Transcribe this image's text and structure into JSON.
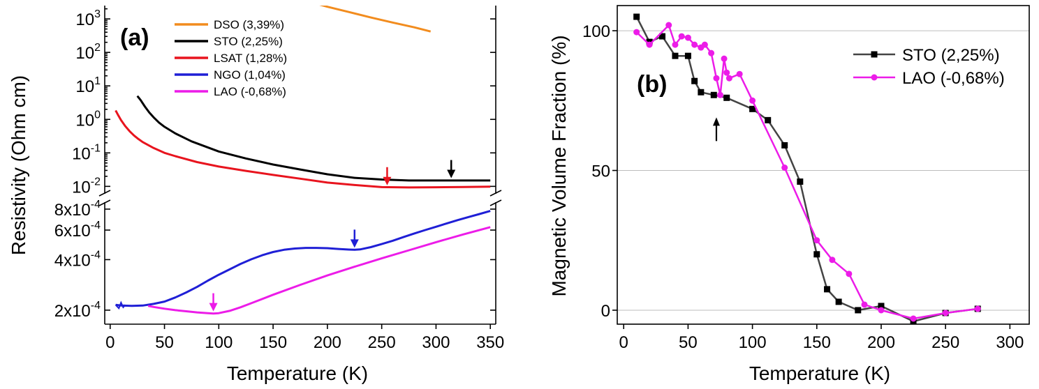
{
  "chart_data": [
    {
      "panel_label": "(a)",
      "type": "line",
      "xlabel": "Temperature (K)",
      "ylabel": "Resistivity (Ohm cm)",
      "xlim": [
        -5,
        355
      ],
      "x_ticks": [
        0,
        50,
        100,
        150,
        200,
        250,
        300,
        350
      ],
      "y_scale": "log, broken axis",
      "upper_ylim": [
        0.006,
        2500
      ],
      "lower_ylim": [
        0.000165,
        0.00088
      ],
      "upper_y_ticks": [
        {
          "value": 1000,
          "label": "10",
          "exp": "3"
        },
        {
          "value": 100,
          "label": "10",
          "exp": "2"
        },
        {
          "value": 10,
          "label": "10",
          "exp": "1"
        },
        {
          "value": 1,
          "label": "10",
          "exp": "0"
        },
        {
          "value": 0.1,
          "label": "10",
          "exp": "-1"
        },
        {
          "value": 0.01,
          "label": "10",
          "exp": "-2"
        }
      ],
      "lower_y_ticks": [
        {
          "value": 0.0008,
          "label": "8x10",
          "exp": "-4"
        },
        {
          "value": 0.0006,
          "label": "6x10",
          "exp": "-4"
        },
        {
          "value": 0.0004,
          "label": "4x10",
          "exp": "-4"
        },
        {
          "value": 0.0002,
          "label": "2x10",
          "exp": "-4"
        }
      ],
      "legend_position": "top-center",
      "series": [
        {
          "name": "DSO (3,39%)",
          "color": "#f28c1e",
          "segment": "upper",
          "x": [
            180,
            200,
            220,
            240,
            260,
            280,
            295
          ],
          "y": [
            3500,
            2300,
            1600,
            1100,
            780,
            560,
            420
          ]
        },
        {
          "name": "STO (2,25%)",
          "color": "#000000",
          "segment": "upper",
          "x": [
            25,
            28,
            32,
            36,
            40,
            45,
            50,
            60,
            75,
            100,
            125,
            150,
            175,
            200,
            225,
            250,
            275,
            300,
            325,
            350
          ],
          "y": [
            5.0,
            3.8,
            2.4,
            1.6,
            1.15,
            0.8,
            0.6,
            0.38,
            0.22,
            0.11,
            0.068,
            0.045,
            0.032,
            0.023,
            0.018,
            0.016,
            0.015,
            0.015,
            0.015,
            0.015
          ]
        },
        {
          "name": "LSAT (1,28%)",
          "color": "#e8141e",
          "segment": "upper",
          "x": [
            5,
            7,
            10,
            14,
            18,
            22,
            26,
            30,
            40,
            50,
            60,
            80,
            100,
            125,
            150,
            175,
            200,
            225,
            250,
            275,
            300,
            325,
            350
          ],
          "y": [
            1.85,
            1.4,
            0.95,
            0.62,
            0.44,
            0.33,
            0.26,
            0.21,
            0.14,
            0.1,
            0.08,
            0.053,
            0.039,
            0.029,
            0.022,
            0.017,
            0.013,
            0.011,
            0.0095,
            0.0093,
            0.0094,
            0.0096,
            0.0098
          ]
        },
        {
          "name": "NGO (1,04%)",
          "color": "#1f1fd6",
          "segment": "lower",
          "x": [
            5,
            10,
            20,
            30,
            40,
            50,
            60,
            70,
            80,
            90,
            100,
            110,
            120,
            130,
            140,
            150,
            160,
            170,
            180,
            190,
            200,
            210,
            220,
            225,
            230,
            240,
            250,
            260,
            270,
            280,
            290,
            300,
            310,
            320,
            330,
            340,
            350
          ],
          "y": [
            0.000215,
            0.000213,
            0.000212,
            0.000213,
            0.000218,
            0.000225,
            0.000238,
            0.000255,
            0.000275,
            0.0003,
            0.000325,
            0.00035,
            0.000377,
            0.000402,
            0.000425,
            0.000444,
            0.000458,
            0.000466,
            0.00047,
            0.00047,
            0.000468,
            0.000463,
            0.000459,
            0.000458,
            0.00046,
            0.000475,
            0.000495,
            0.000518,
            0.000545,
            0.000573,
            0.0006,
            0.000628,
            0.000658,
            0.000688,
            0.000718,
            0.000748,
            0.00078
          ]
        },
        {
          "name": "LAO (-0,68%)",
          "color": "#ec1ce8",
          "segment": "lower",
          "x": [
            35,
            40,
            50,
            60,
            70,
            80,
            90,
            95,
            100,
            110,
            120,
            130,
            150,
            175,
            200,
            225,
            250,
            275,
            300,
            325,
            350
          ],
          "y": [
            0.000212,
            0.000209,
            0.000204,
            0.0002,
            0.000197,
            0.000194,
            0.000192,
            0.000191,
            0.000192,
            0.000198,
            0.000208,
            0.00022,
            0.000247,
            0.000283,
            0.000322,
            0.000363,
            0.000407,
            0.000455,
            0.000508,
            0.000565,
            0.000625
          ]
        }
      ],
      "annotations": [
        {
          "type": "arrow",
          "x": 255,
          "y": 0.0098,
          "segment": "upper",
          "color": "#e8141e"
        },
        {
          "type": "arrow",
          "x": 314,
          "y": 0.016,
          "segment": "upper",
          "color": "#000000"
        },
        {
          "type": "arrow",
          "x": 225,
          "y": 0.000462,
          "segment": "lower",
          "color": "#1f1fd6"
        },
        {
          "type": "arrow",
          "x": 95,
          "y": 0.000193,
          "segment": "lower",
          "color": "#ec1ce8"
        }
      ]
    },
    {
      "panel_label": "(b)",
      "type": "line",
      "xlabel": "Temperature (K)",
      "ylabel": "Magnetic Volume Fraction (%)",
      "xlim": [
        -5,
        315
      ],
      "ylim": [
        -5,
        109
      ],
      "x_ticks": [
        0,
        50,
        100,
        150,
        200,
        250,
        300
      ],
      "y_ticks": [
        0,
        50,
        100
      ],
      "grid": "horizontal",
      "legend_position": "top-right",
      "series": [
        {
          "name": "STO (2,25%)",
          "color": "#444444",
          "marker": "square",
          "x": [
            10,
            20,
            30,
            40,
            50,
            55,
            60,
            70,
            80,
            100,
            112,
            125,
            137,
            150,
            158,
            167,
            182,
            200,
            225,
            250,
            275
          ],
          "y": [
            105,
            96,
            98,
            91,
            91,
            82,
            78,
            77,
            76,
            72,
            68,
            59,
            46,
            20,
            7.5,
            3,
            0,
            1.5,
            -4,
            -1,
            0.5
          ]
        },
        {
          "name": "LAO (-0,68%)",
          "color": "#ec1ce8",
          "marker": "circle",
          "x": [
            10,
            20,
            35,
            40,
            45,
            50,
            55,
            60,
            63,
            68,
            72,
            75,
            78,
            80,
            82,
            90,
            100,
            125,
            150,
            162,
            175,
            187,
            200,
            225,
            250,
            275
          ],
          "y": [
            99.5,
            95,
            102,
            95,
            98,
            97.5,
            95,
            94,
            95,
            92,
            83,
            77,
            90,
            85,
            83,
            84.5,
            75,
            51,
            25,
            18,
            13,
            2,
            0,
            -3,
            -1,
            0.5
          ]
        }
      ],
      "annotations": [
        {
          "type": "arrow",
          "x": 72,
          "y": 69,
          "direction": "up",
          "color": "#000000"
        }
      ]
    }
  ]
}
